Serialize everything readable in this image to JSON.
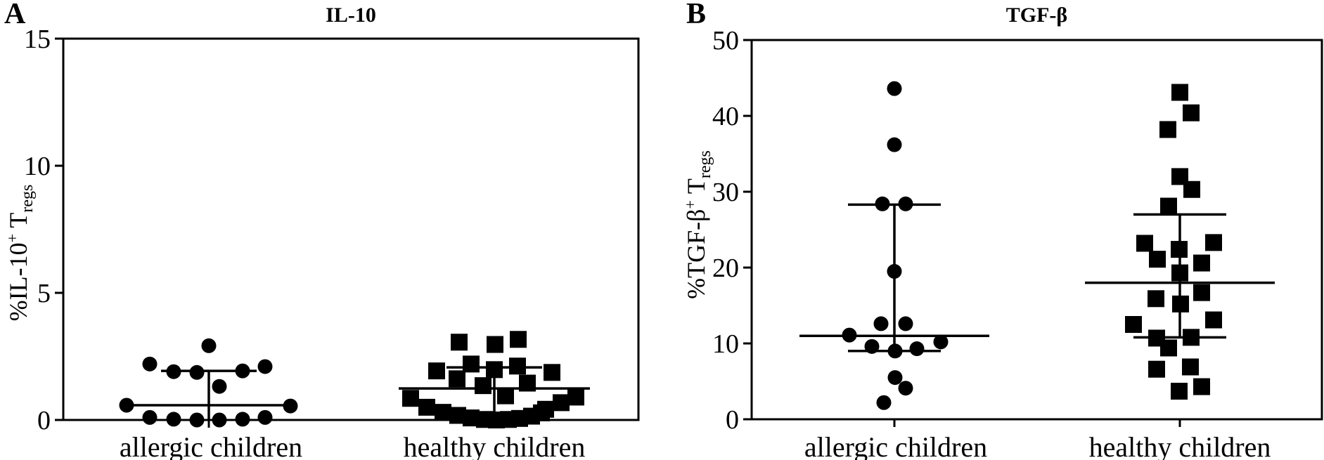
{
  "figure": {
    "colors": {
      "marker": "#000000",
      "axis": "#000000",
      "background": "#ffffff"
    },
    "panels": [
      {
        "letter": "A",
        "title": "IL-10",
        "ylabel": {
          "prefix": "%IL-10",
          "sup": "+",
          "mid": " T",
          "sub": "regs"
        },
        "categories": [
          "allergic children",
          "healthy children"
        ]
      },
      {
        "letter": "B",
        "title": "TGF-β",
        "ylabel": {
          "prefix": "%TGF-β",
          "sup": "+",
          "mid": " T",
          "sub": "regs"
        },
        "categories": [
          "allergic children",
          "healthy children"
        ]
      }
    ]
  },
  "chart_data": [
    {
      "type": "scatter",
      "panel": "A",
      "title": "IL-10",
      "ylabel": "%IL-10+ Tregs",
      "categories": [
        "allergic children",
        "healthy children"
      ],
      "ylim": [
        0,
        15
      ],
      "yticks": [
        0,
        5,
        10,
        15
      ],
      "grid": false,
      "series": [
        {
          "name": "allergic children",
          "marker": "circle",
          "points": [
            [
              -84,
              2.2
            ],
            [
              -50,
              1.9
            ],
            [
              -17,
              1.87
            ],
            [
              0,
              2.92
            ],
            [
              15,
              1.32
            ],
            [
              48,
              1.93
            ],
            [
              80,
              2.1
            ],
            [
              -117,
              0.58
            ],
            [
              116,
              0.55
            ],
            [
              -84,
              0.1
            ],
            [
              -50,
              0.03
            ],
            [
              -17,
              0.0
            ],
            [
              15,
              0.0
            ],
            [
              48,
              0.03
            ],
            [
              80,
              0.1
            ]
          ],
          "stats": {
            "median": 0.58,
            "upper_whisker": 1.93,
            "lower_whisker": 0,
            "lower_cap": false
          }
        },
        {
          "name": "healthy children",
          "marker": "square",
          "points": [
            [
              -50,
              3.06
            ],
            [
              1,
              2.97
            ],
            [
              34,
              3.17
            ],
            [
              -82,
              1.93
            ],
            [
              -33,
              2.2
            ],
            [
              0,
              1.98
            ],
            [
              33,
              2.12
            ],
            [
              82,
              1.87
            ],
            [
              -53,
              1.62
            ],
            [
              -16,
              1.35
            ],
            [
              16,
              0.95
            ],
            [
              47,
              1.45
            ],
            [
              -119,
              0.85
            ],
            [
              -96,
              0.5
            ],
            [
              -73,
              0.3
            ],
            [
              73,
              0.42
            ],
            [
              95,
              0.68
            ],
            [
              116,
              0.9
            ],
            [
              -52,
              0.18
            ],
            [
              -33,
              0.08
            ],
            [
              -14,
              0.02
            ],
            [
              3,
              0.0
            ],
            [
              20,
              0.02
            ],
            [
              36,
              0.06
            ],
            [
              53,
              0.15
            ],
            [
              67,
              0.28
            ]
          ],
          "stats": {
            "median": 1.24,
            "upper_whisker": 2.07,
            "lower_whisker": 0,
            "lower_cap": false
          }
        }
      ]
    },
    {
      "type": "scatter",
      "panel": "B",
      "title": "TGF-β",
      "ylabel": "%TGF-β+ Tregs",
      "categories": [
        "allergic children",
        "healthy children"
      ],
      "ylim": [
        0,
        50
      ],
      "yticks": [
        0,
        10,
        20,
        30,
        40,
        50
      ],
      "grid": false,
      "series": [
        {
          "name": "allergic children",
          "marker": "circle",
          "points": [
            [
              0,
              43.6
            ],
            [
              0,
              36.2
            ],
            [
              -17,
              28.4
            ],
            [
              16,
              28.4
            ],
            [
              0,
              19.5
            ],
            [
              -19,
              12.6
            ],
            [
              16,
              12.6
            ],
            [
              -64,
              11.1
            ],
            [
              -32,
              9.6
            ],
            [
              1,
              9.0
            ],
            [
              32,
              9.3
            ],
            [
              66,
              10.2
            ],
            [
              1,
              5.5
            ],
            [
              16,
              4.1
            ],
            [
              -15,
              2.2
            ]
          ],
          "stats": {
            "median": 11.0,
            "upper_whisker": 28.3,
            "lower_whisker": 9.0,
            "lower_cap": true
          }
        },
        {
          "name": "healthy children",
          "marker": "square",
          "points": [
            [
              0,
              43.1
            ],
            [
              16,
              40.4
            ],
            [
              -17,
              38.2
            ],
            [
              0,
              32.0
            ],
            [
              17,
              30.3
            ],
            [
              -16,
              28.1
            ],
            [
              -50,
              23.2
            ],
            [
              48,
              23.3
            ],
            [
              -1,
              22.4
            ],
            [
              -32,
              21.1
            ],
            [
              31,
              20.6
            ],
            [
              0,
              19.3
            ],
            [
              31,
              16.7
            ],
            [
              -34,
              15.9
            ],
            [
              1,
              15.2
            ],
            [
              48,
              13.1
            ],
            [
              -66,
              12.5
            ],
            [
              16,
              10.8
            ],
            [
              -33,
              10.7
            ],
            [
              -16,
              9.4
            ],
            [
              -33,
              6.6
            ],
            [
              15,
              6.9
            ],
            [
              -1,
              3.7
            ],
            [
              31,
              4.3
            ]
          ],
          "stats": {
            "median": 18.0,
            "upper_whisker": 27.0,
            "lower_whisker": 10.8,
            "lower_cap": true
          }
        }
      ]
    }
  ]
}
